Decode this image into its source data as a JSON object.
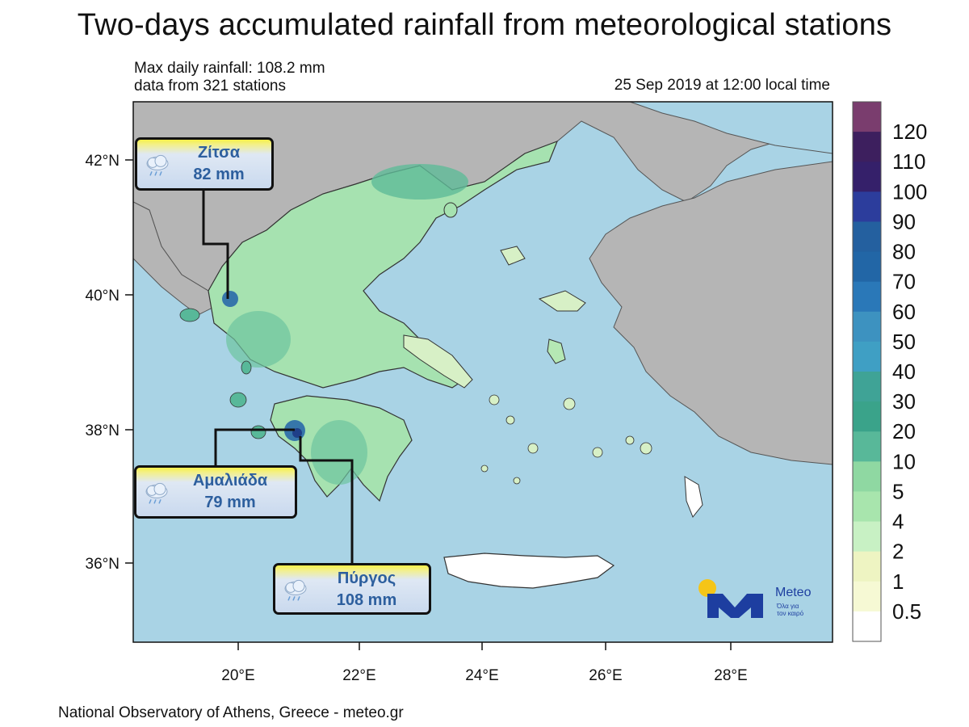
{
  "header": {
    "title": "Two-days accumulated rainfall from meteorological stations",
    "max_rainfall": "Max daily rainfall: 108.2 mm",
    "stations": "data from 321 stations",
    "timestamp": "25 Sep 2019 at 12:00 local time"
  },
  "footer": {
    "credit": "National Observatory of Athens, Greece - meteo.gr"
  },
  "axes": {
    "longitude_ticks": [
      "20°E",
      "22°E",
      "24°E",
      "26°E",
      "28°E"
    ],
    "latitude_ticks": [
      "42°N",
      "40°N",
      "38°N",
      "36°N"
    ]
  },
  "legend": {
    "labels": [
      "120",
      "110",
      "100",
      "90",
      "80",
      "70",
      "60",
      "50",
      "40",
      "30",
      "20",
      "10",
      "5",
      "4",
      "2",
      "1",
      "0.5"
    ],
    "colors": [
      "#7a3d6e",
      "#3d1f5e",
      "#35206a",
      "#2c3d9c",
      "#24609f",
      "#2266a6",
      "#2a78b8",
      "#3d92c0",
      "#3f9fc4",
      "#3fa396",
      "#3aa38a",
      "#58b899",
      "#8fd8a2",
      "#a8e5ad",
      "#c8f1c4",
      "#eef4c2",
      "#f6f9d4",
      "#ffffff"
    ]
  },
  "map_colors": {
    "sea": "#a9d3e5",
    "foreign_land": "#b5b5b5",
    "no_rain": "#ffffff",
    "light_rain": "#bfe9bd",
    "moderate_rain": "#6dc59f",
    "heavy_rain": "#2a6aaa"
  },
  "callouts": [
    {
      "name": "Ζίτσα",
      "amount": "82 mm",
      "icon": "rain-cloud-icon"
    },
    {
      "name": "Αμαλιάδα",
      "amount": "79 mm",
      "icon": "rain-cloud-icon"
    },
    {
      "name": "Πύργος",
      "amount": "108 mm",
      "icon": "rain-cloud-icon"
    }
  ],
  "logo": {
    "name": "Meteo",
    "tagline_line1": "Όλα για",
    "tagline_line2": "τον καιρό",
    "icon": "meteo-logo-icon"
  }
}
